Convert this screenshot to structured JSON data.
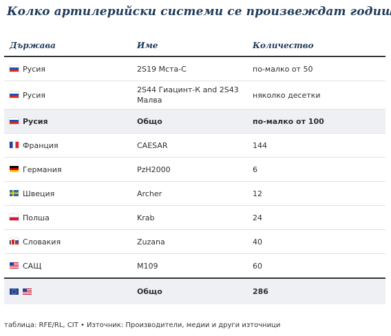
{
  "title": "Колко артилерийски системи се произвеждат годишно",
  "columns": [
    "Държава",
    "Име",
    "Количество"
  ],
  "rows": [
    {
      "flag": "russia-flag-icon",
      "country": "Русия",
      "name": "2S19 Мста-С",
      "quantity": "по-малко от 50"
    },
    {
      "flag": "russia-flag-icon",
      "country": "Русия",
      "name": "2S44 Гиацинт-К and 2S43 Малва",
      "quantity": "няколко десетки"
    },
    {
      "flag": "russia-flag-icon",
      "country": "Русия",
      "name": "Общо",
      "quantity": "по-малко от 100"
    },
    {
      "flag": "france-flag-icon",
      "country": "Франция",
      "name": "CAESAR",
      "quantity": "144"
    },
    {
      "flag": "germany-flag-icon",
      "country": "Германия",
      "name": "PzH2000",
      "quantity": "6"
    },
    {
      "flag": "sweden-flag-icon",
      "country": "Швеция",
      "name": "Archer",
      "quantity": "12"
    },
    {
      "flag": "poland-flag-icon",
      "country": "Полша",
      "name": "Krab",
      "quantity": "24"
    },
    {
      "flag": "slovakia-flag-icon",
      "country": "Словакия",
      "name": "Zuzana",
      "quantity": "40"
    },
    {
      "flag": "usa-flag-icon",
      "country": "САЩ",
      "name": "M109",
      "quantity": "60"
    },
    {
      "flag": "eu-flag-icon",
      "country": "",
      "name": "Общо",
      "quantity": "286"
    }
  ],
  "source": "таблица: RFE/RL, CIT  • Източник: Производители, медии и други източници"
}
